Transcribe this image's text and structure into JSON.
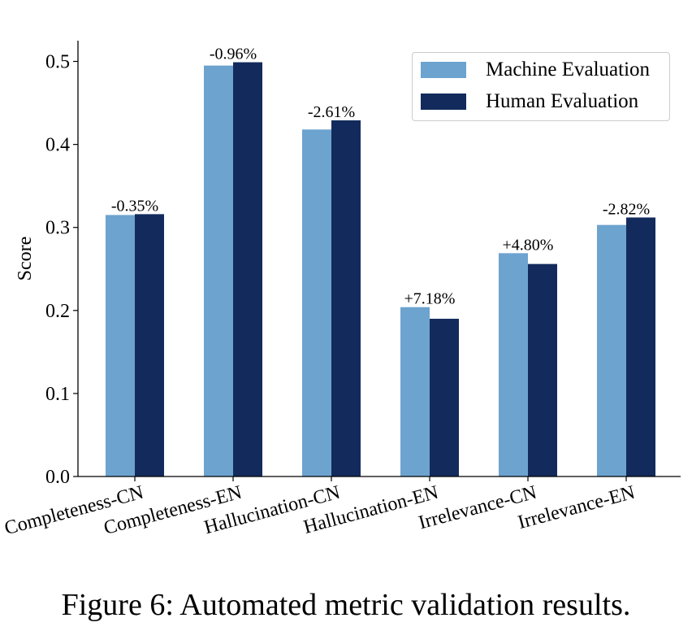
{
  "chart_data": {
    "type": "bar",
    "ylabel": "Score",
    "xlabel": "",
    "ylim": [
      0,
      0.525
    ],
    "yticks": [
      "0.0",
      "0.1",
      "0.2",
      "0.3",
      "0.4",
      "0.5"
    ],
    "ytick_values": [
      0.0,
      0.1,
      0.2,
      0.3,
      0.4,
      0.5
    ],
    "categories": [
      "Completeness-CN",
      "Completeness-EN",
      "Hallucination-CN",
      "Hallucination-EN",
      "Irrelevance-CN",
      "Irrelevance-EN"
    ],
    "series": [
      {
        "name": "Machine Evaluation",
        "color": "#6da3cf",
        "values": [
          0.315,
          0.495,
          0.418,
          0.204,
          0.269,
          0.303
        ]
      },
      {
        "name": "Human Evaluation",
        "color": "#132b5c",
        "values": [
          0.316,
          0.499,
          0.429,
          0.19,
          0.256,
          0.312
        ]
      }
    ],
    "annotations": [
      "-0.35%",
      "-0.96%",
      "-2.61%",
      "+7.18%",
      "+4.80%",
      "-2.82%"
    ],
    "legend_position": "top-right"
  },
  "caption": "Figure 6: Automated metric validation results."
}
